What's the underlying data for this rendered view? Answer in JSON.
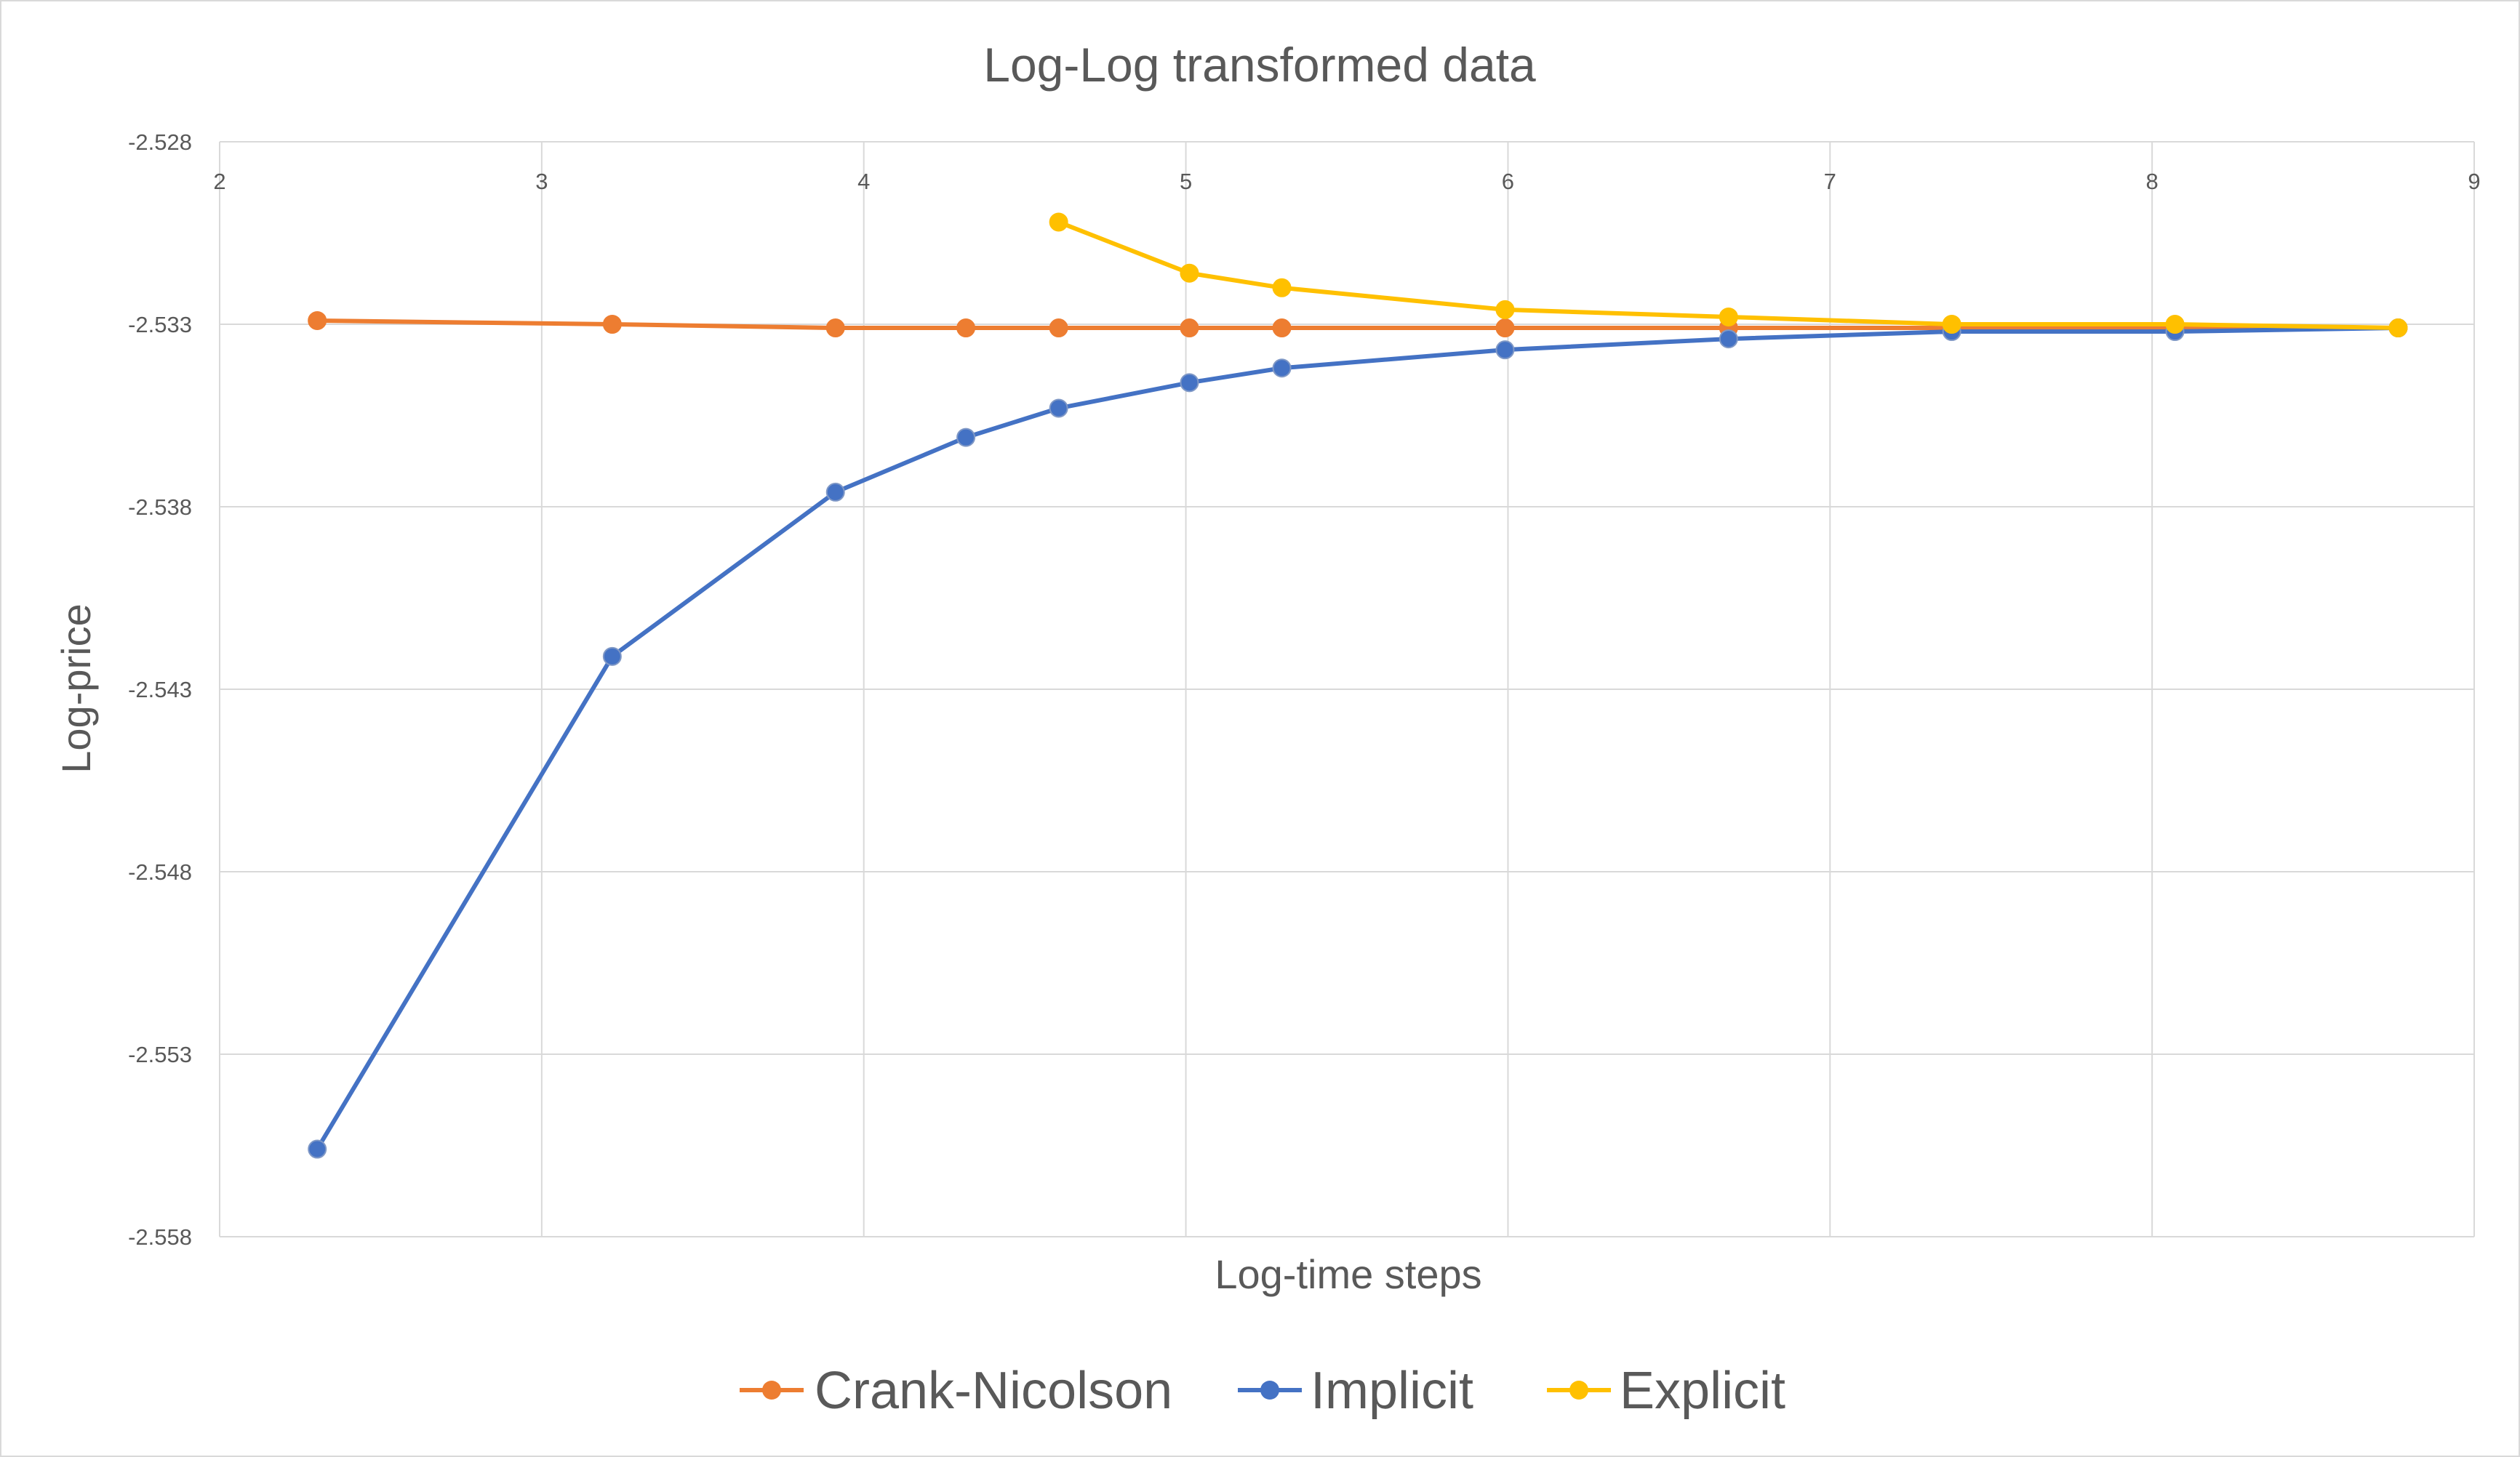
{
  "chart_data": {
    "type": "scatter",
    "title": "Log-Log transformed data",
    "xlabel": "Log-time steps",
    "ylabel": "Log-price",
    "xlim": [
      2,
      9
    ],
    "ylim": [
      -2.558,
      -2.528
    ],
    "x_ticks": [
      "2",
      "3",
      "4",
      "5",
      "6",
      "7",
      "8",
      "9"
    ],
    "y_ticks": [
      "-2.528",
      "-2.533",
      "-2.538",
      "-2.543",
      "-2.548",
      "-2.553",
      "-2.558"
    ],
    "grid": true,
    "legend_position": "bottom",
    "series": [
      {
        "name": "Crank-Nicolson",
        "color": "#ED7D31",
        "points": [
          [
            2.303,
            -2.5329
          ],
          [
            3.219,
            -2.533
          ],
          [
            3.912,
            -2.5331
          ],
          [
            4.317,
            -2.5331
          ],
          [
            4.605,
            -2.5331
          ],
          [
            5.011,
            -2.5331
          ],
          [
            5.298,
            -2.5331
          ],
          [
            5.991,
            -2.5331
          ],
          [
            6.685,
            -2.5331
          ],
          [
            7.378,
            -2.5331
          ],
          [
            8.071,
            -2.5331
          ],
          [
            8.764,
            -2.5331
          ]
        ]
      },
      {
        "name": "Implicit",
        "color": "#4472C4",
        "points": [
          [
            2.303,
            -2.5556
          ],
          [
            3.219,
            -2.5421
          ],
          [
            3.912,
            -2.5376
          ],
          [
            4.317,
            -2.5361
          ],
          [
            4.605,
            -2.5353
          ],
          [
            5.011,
            -2.5346
          ],
          [
            5.298,
            -2.5342
          ],
          [
            5.991,
            -2.5337
          ],
          [
            6.685,
            -2.5334
          ],
          [
            7.378,
            -2.5332
          ],
          [
            8.071,
            -2.5332
          ],
          [
            8.764,
            -2.5331
          ]
        ]
      },
      {
        "name": "Explicit",
        "color": "#FFC000",
        "points": [
          [
            4.605,
            -2.5302
          ],
          [
            5.011,
            -2.5316
          ],
          [
            5.298,
            -2.532
          ],
          [
            5.991,
            -2.5326
          ],
          [
            6.685,
            -2.5328
          ],
          [
            7.378,
            -2.533
          ],
          [
            8.071,
            -2.533
          ],
          [
            8.764,
            -2.5331
          ]
        ]
      }
    ]
  }
}
